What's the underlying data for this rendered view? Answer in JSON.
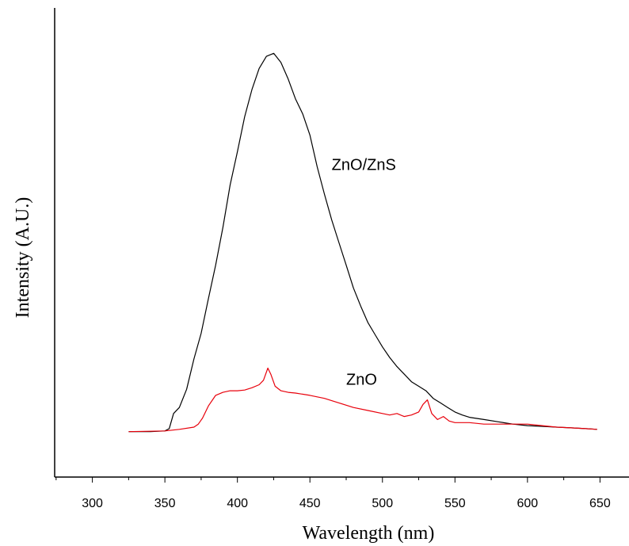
{
  "chart_data": {
    "type": "line",
    "xlabel": "Wavelength (nm)",
    "ylabel": "Intensity (A.U.)",
    "xlim": [
      274,
      670
    ],
    "ylim": [
      -30,
      280
    ],
    "xticks": [
      300,
      350,
      400,
      450,
      500,
      550,
      600,
      650
    ],
    "yticks_shown": false,
    "grid": false,
    "series": [
      {
        "name": "ZnO/ZnS",
        "color": "#000000",
        "points": [
          [
            325,
            0
          ],
          [
            340,
            0
          ],
          [
            350,
            0.5
          ],
          [
            353,
            2
          ],
          [
            356,
            12
          ],
          [
            360,
            16
          ],
          [
            365,
            28
          ],
          [
            370,
            48
          ],
          [
            375,
            65
          ],
          [
            380,
            88
          ],
          [
            385,
            110
          ],
          [
            390,
            135
          ],
          [
            395,
            163
          ],
          [
            400,
            185
          ],
          [
            405,
            208
          ],
          [
            410,
            226
          ],
          [
            415,
            240
          ],
          [
            420,
            248
          ],
          [
            425,
            250
          ],
          [
            430,
            244
          ],
          [
            435,
            233
          ],
          [
            440,
            220
          ],
          [
            445,
            210
          ],
          [
            450,
            196
          ],
          [
            455,
            175
          ],
          [
            460,
            157
          ],
          [
            465,
            140
          ],
          [
            470,
            125
          ],
          [
            475,
            110
          ],
          [
            480,
            95
          ],
          [
            485,
            83
          ],
          [
            490,
            72
          ],
          [
            495,
            64
          ],
          [
            500,
            56
          ],
          [
            505,
            49
          ],
          [
            510,
            43
          ],
          [
            515,
            38
          ],
          [
            520,
            33
          ],
          [
            525,
            30
          ],
          [
            530,
            27
          ],
          [
            535,
            22
          ],
          [
            540,
            19
          ],
          [
            545,
            16
          ],
          [
            550,
            13
          ],
          [
            555,
            11
          ],
          [
            560,
            9.5
          ],
          [
            570,
            8
          ],
          [
            580,
            6.5
          ],
          [
            590,
            5
          ],
          [
            600,
            4
          ],
          [
            610,
            3.5
          ],
          [
            620,
            3
          ],
          [
            630,
            2.5
          ],
          [
            640,
            2
          ],
          [
            648,
            1.5
          ]
        ]
      },
      {
        "name": "ZnO",
        "color": "#e8000b",
        "points": [
          [
            325,
            0
          ],
          [
            350,
            0.5
          ],
          [
            360,
            1.5
          ],
          [
            370,
            3
          ],
          [
            373,
            5
          ],
          [
            376,
            9
          ],
          [
            380,
            17
          ],
          [
            385,
            24
          ],
          [
            390,
            26
          ],
          [
            395,
            27
          ],
          [
            400,
            27
          ],
          [
            405,
            27.5
          ],
          [
            410,
            29
          ],
          [
            415,
            31
          ],
          [
            418,
            34
          ],
          [
            421,
            42
          ],
          [
            423,
            38
          ],
          [
            426,
            30
          ],
          [
            430,
            27
          ],
          [
            435,
            26
          ],
          [
            440,
            25.5
          ],
          [
            450,
            24
          ],
          [
            460,
            22
          ],
          [
            470,
            19
          ],
          [
            480,
            16
          ],
          [
            490,
            14
          ],
          [
            500,
            12
          ],
          [
            505,
            11
          ],
          [
            510,
            12
          ],
          [
            515,
            10
          ],
          [
            520,
            11
          ],
          [
            525,
            13
          ],
          [
            528,
            18
          ],
          [
            531,
            21
          ],
          [
            534,
            12
          ],
          [
            538,
            8
          ],
          [
            542,
            10
          ],
          [
            546,
            7
          ],
          [
            550,
            6
          ],
          [
            560,
            6
          ],
          [
            570,
            5
          ],
          [
            580,
            5
          ],
          [
            590,
            5
          ],
          [
            600,
            5
          ],
          [
            610,
            4
          ],
          [
            620,
            3
          ],
          [
            630,
            2.5
          ],
          [
            640,
            2
          ],
          [
            648,
            1.5
          ]
        ]
      }
    ],
    "annotations": [
      {
        "text": "ZnO/ZnS",
        "x": 465,
        "y": 173
      },
      {
        "text": "ZnO",
        "x": 475,
        "y": 31
      }
    ]
  }
}
